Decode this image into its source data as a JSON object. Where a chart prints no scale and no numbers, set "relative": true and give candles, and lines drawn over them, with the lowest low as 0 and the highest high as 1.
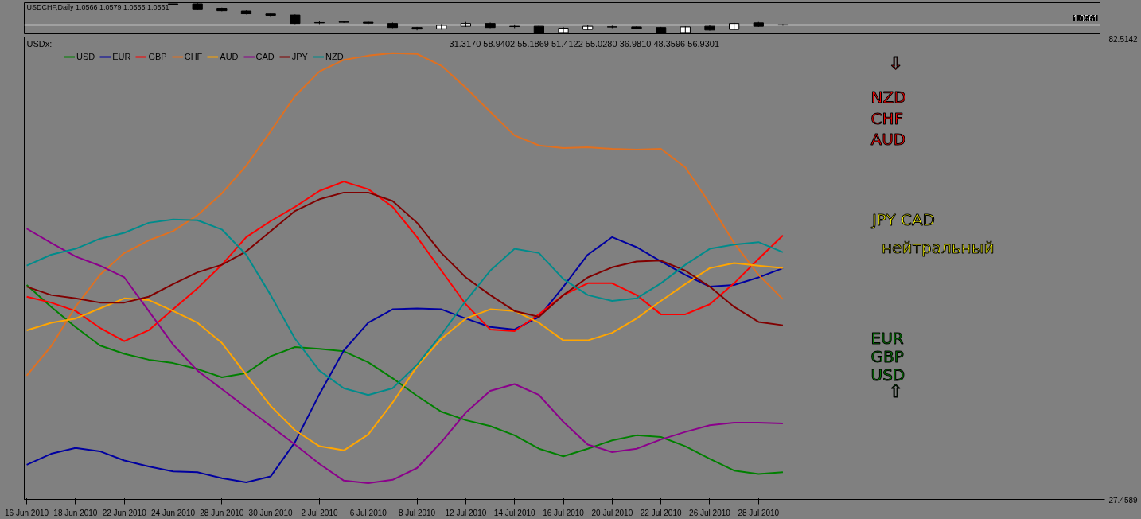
{
  "chart_data": [
    {
      "type": "candlestick",
      "title": "USDCHF,Daily 1.0566 1.0579 1.0555 1.0561",
      "relative": true,
      "tick_labels": false,
      "categories": [
        null,
        null,
        null,
        null,
        null,
        null,
        null,
        null,
        null,
        null,
        null,
        null,
        null,
        null,
        null,
        null,
        null,
        null,
        null,
        null,
        null,
        null,
        null,
        null,
        null,
        null,
        null,
        null,
        null,
        null,
        null,
        null
      ],
      "ohlc": [
        null,
        null,
        null,
        null,
        null,
        null,
        [
          0.96,
          0.98,
          0.93,
          0.95
        ],
        [
          0.96,
          1.0,
          0.78,
          0.8
        ],
        [
          0.82,
          0.84,
          0.72,
          0.74
        ],
        [
          0.73,
          0.75,
          0.62,
          0.64
        ],
        [
          0.66,
          0.68,
          0.55,
          0.59
        ],
        [
          0.6,
          0.62,
          0.31,
          0.33
        ],
        [
          0.36,
          0.4,
          0.31,
          0.35
        ],
        [
          0.38,
          0.4,
          0.35,
          0.37
        ],
        [
          0.37,
          0.4,
          0.31,
          0.34
        ],
        [
          0.33,
          0.36,
          0.18,
          0.2
        ],
        [
          0.2,
          0.22,
          0.11,
          0.15
        ],
        [
          0.16,
          0.31,
          0.13,
          0.27
        ],
        [
          0.24,
          0.38,
          0.22,
          0.33
        ],
        [
          0.33,
          0.36,
          0.18,
          0.2
        ],
        [
          0.24,
          0.3,
          0.18,
          0.23
        ],
        [
          0.24,
          0.27,
          0.02,
          0.04
        ],
        [
          0.04,
          0.22,
          0.02,
          0.18
        ],
        [
          0.14,
          0.27,
          0.12,
          0.24
        ],
        [
          0.22,
          0.26,
          0.18,
          0.22
        ],
        [
          0.22,
          0.24,
          0.14,
          0.16
        ],
        [
          0.2,
          0.22,
          0.0,
          0.04
        ],
        [
          0.04,
          0.24,
          0.0,
          0.22
        ],
        [
          0.24,
          0.27,
          0.1,
          0.12
        ],
        [
          0.14,
          0.36,
          0.12,
          0.33
        ],
        [
          0.35,
          0.38,
          0.22,
          0.24
        ],
        [
          0.29,
          0.31,
          0.26,
          0.28
        ]
      ],
      "annotations": [
        "1.0561"
      ],
      "ref_lines": [
        {
          "axis": "y",
          "value": 0.28,
          "color": "#c0c0c0"
        }
      ]
    },
    {
      "type": "line",
      "title": "USDx:",
      "subtitle": "31.3170 58.9402 55.1869 51.4122 55.0280 36.9810 48.3596 56.9301",
      "categories": [
        "16 Jun 2010",
        null,
        "18 Jun 2010",
        null,
        "22 Jun 2010",
        null,
        "24 Jun 2010",
        null,
        "28 Jun 2010",
        null,
        "30 Jun 2010",
        null,
        "2 Jul 2010",
        null,
        "6 Jul 2010",
        null,
        "8 Jul 2010",
        null,
        "12 Jul 2010",
        null,
        "14 Jul 2010",
        null,
        "16 Jul 2010",
        null,
        "20 Jul 2010",
        null,
        "22 Jul 2010",
        null,
        "26 Jul 2010",
        null,
        "28 Jul 2010",
        null
      ],
      "ylim": [
        27.4589,
        82.5142
      ],
      "yticks": [
        27.4589,
        82.5142
      ],
      "legend": "top left",
      "series": [
        {
          "name": "USD",
          "color": "#008000",
          "values": [
            53.0,
            50.4,
            48.0,
            45.8,
            44.8,
            44.1,
            43.7,
            43.0,
            42.0,
            42.5,
            44.5,
            45.6,
            45.4,
            45.1,
            43.8,
            41.9,
            39.8,
            37.9,
            36.9,
            36.2,
            35.1,
            33.5,
            32.6,
            33.5,
            34.5,
            35.1,
            34.9,
            33.8,
            32.3,
            30.9,
            30.5,
            30.7
          ]
        },
        {
          "name": "EUR",
          "color": "#0000a0",
          "values": [
            31.6,
            32.9,
            33.6,
            33.2,
            32.1,
            31.4,
            30.8,
            30.7,
            30.0,
            29.5,
            30.2,
            34.3,
            40.0,
            45.2,
            48.5,
            50.1,
            50.2,
            50.1,
            49.0,
            48.0,
            47.7,
            49.2,
            52.8,
            56.6,
            58.7,
            57.5,
            55.8,
            54.2,
            52.8,
            53.0,
            53.9,
            55.0
          ]
        },
        {
          "name": "GBP",
          "color": "#ff0000",
          "values": [
            51.6,
            50.9,
            49.9,
            47.9,
            46.3,
            47.6,
            50.1,
            52.6,
            55.4,
            58.7,
            60.6,
            62.3,
            64.2,
            65.3,
            64.4,
            62.3,
            58.7,
            54.7,
            50.7,
            47.7,
            47.5,
            49.5,
            51.8,
            53.2,
            53.2,
            51.8,
            49.5,
            49.5,
            50.7,
            53.2,
            56.1,
            58.9
          ]
        },
        {
          "name": "CHF",
          "color": "#e07020",
          "values": [
            42.2,
            45.7,
            50.4,
            54.2,
            56.8,
            58.3,
            59.4,
            61.3,
            63.9,
            67.2,
            71.3,
            75.5,
            78.4,
            79.8,
            80.3,
            80.6,
            80.5,
            79.1,
            76.5,
            73.6,
            70.8,
            69.6,
            69.3,
            69.4,
            69.2,
            69.1,
            69.2,
            67.0,
            62.7,
            58.0,
            54.2,
            51.3
          ]
        },
        {
          "name": "AUD",
          "color": "#ffa500",
          "values": [
            47.6,
            48.5,
            49.0,
            50.2,
            51.4,
            51.2,
            49.9,
            48.5,
            46.1,
            42.3,
            38.6,
            35.7,
            33.8,
            33.3,
            35.2,
            39.0,
            43.3,
            46.6,
            49.0,
            50.1,
            49.9,
            48.5,
            46.4,
            46.4,
            47.3,
            49.0,
            51.1,
            53.1,
            55.0,
            55.6,
            55.3,
            55.0
          ]
        },
        {
          "name": "CAD",
          "color": "#8b008b",
          "values": [
            59.7,
            58.0,
            56.4,
            55.3,
            53.9,
            49.9,
            45.9,
            42.8,
            40.6,
            38.4,
            36.2,
            34.0,
            31.7,
            29.7,
            29.4,
            29.8,
            31.2,
            34.3,
            37.8,
            40.4,
            41.2,
            39.9,
            36.7,
            34.0,
            33.1,
            33.5,
            34.6,
            35.5,
            36.3,
            36.6,
            36.6,
            36.5
          ]
        },
        {
          "name": "JPY",
          "color": "#800000",
          "values": [
            52.8,
            51.8,
            51.4,
            50.9,
            50.9,
            51.6,
            53.1,
            54.5,
            55.4,
            57.0,
            59.4,
            61.8,
            63.2,
            64.0,
            64.0,
            63.0,
            60.4,
            56.8,
            53.9,
            51.8,
            49.9,
            49.2,
            51.8,
            53.9,
            55.1,
            55.8,
            55.9,
            54.7,
            52.8,
            50.4,
            48.6,
            48.2
          ]
        },
        {
          "name": "NZD",
          "color": "#008b8b",
          "values": [
            55.3,
            56.6,
            57.3,
            58.5,
            59.2,
            60.4,
            60.8,
            60.7,
            59.6,
            56.6,
            51.8,
            46.6,
            42.8,
            40.7,
            39.9,
            40.7,
            43.5,
            47.1,
            51.1,
            54.7,
            57.3,
            56.8,
            53.7,
            51.8,
            51.1,
            51.4,
            53.2,
            55.4,
            57.3,
            57.8,
            58.1,
            56.9
          ]
        }
      ],
      "annotations": [
        "⇩",
        "NZD",
        "CHF",
        "AUD",
        "JPY   CAD",
        "нейтральный",
        "EUR",
        "GBP",
        "USD",
        "⇧"
      ]
    }
  ]
}
